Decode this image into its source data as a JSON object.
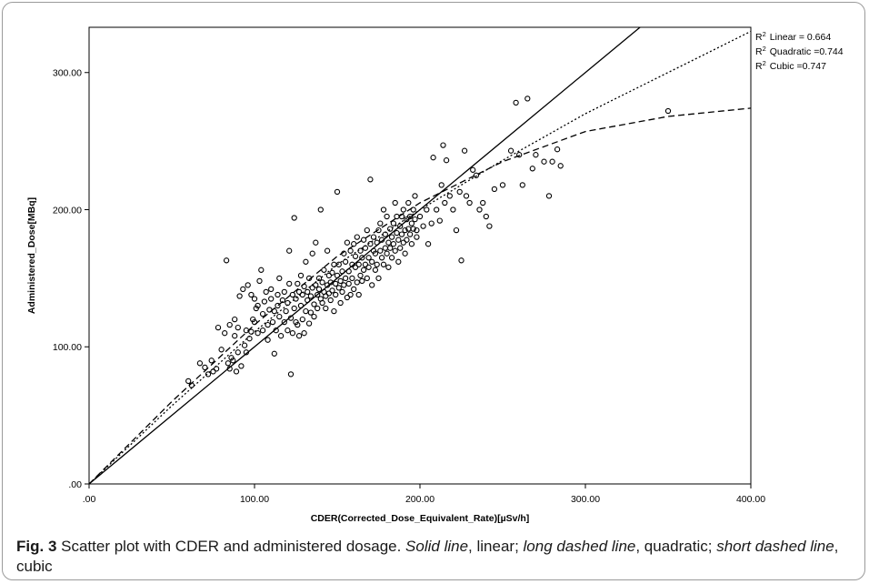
{
  "chart_data": {
    "type": "scatter",
    "xlabel": "CDER(Corrected_Dose_Equivalent_Rate)[µSv/h]",
    "ylabel": "Administered_Dose[MBq]",
    "xlim": [
      0,
      400
    ],
    "ylim": [
      0,
      333
    ],
    "x_ticks": [
      ".00",
      "100.00",
      "200.00",
      "300.00",
      "400.00"
    ],
    "x_tick_values": [
      0,
      100,
      200,
      300,
      400
    ],
    "y_ticks": [
      ".00",
      "100.00",
      "200.00",
      "300.00"
    ],
    "y_tick_values": [
      0,
      100,
      200,
      300
    ],
    "grid": false,
    "legend_entries": [
      {
        "label": "Linear = 0.664",
        "r2": 0.664
      },
      {
        "label": "Quadratic =0.744",
        "r2": 0.744
      },
      {
        "label": "Cubic =0.747",
        "r2": 0.747
      }
    ],
    "fit_lines": [
      {
        "name": "linear",
        "style": "solid",
        "x": [
          0,
          100,
          200,
          300,
          333
        ],
        "y": [
          0,
          100,
          200,
          300,
          333
        ]
      },
      {
        "name": "quadratic",
        "style": "long-dash",
        "x": [
          0,
          50,
          100,
          150,
          200,
          250,
          300,
          350,
          400
        ],
        "y": [
          0,
          60,
          116,
          166,
          205,
          235,
          257,
          268,
          274
        ]
      },
      {
        "name": "cubic",
        "style": "short-dash",
        "x": [
          0,
          50,
          100,
          150,
          200,
          250,
          300,
          350,
          400
        ],
        "y": [
          0,
          57,
          111,
          160,
          200,
          236,
          270,
          300,
          330
        ]
      }
    ],
    "points": [
      [
        60,
        75
      ],
      [
        62,
        72
      ],
      [
        67,
        88
      ],
      [
        70,
        85
      ],
      [
        72,
        80
      ],
      [
        74,
        90
      ],
      [
        75,
        82
      ],
      [
        77,
        84
      ],
      [
        78,
        114
      ],
      [
        80,
        98
      ],
      [
        82,
        110
      ],
      [
        83,
        163
      ],
      [
        84,
        88
      ],
      [
        85,
        116
      ],
      [
        85,
        84
      ],
      [
        86,
        92
      ],
      [
        87,
        90
      ],
      [
        88,
        108
      ],
      [
        88,
        120
      ],
      [
        89,
        82
      ],
      [
        90,
        114
      ],
      [
        90,
        96
      ],
      [
        91,
        137
      ],
      [
        92,
        86
      ],
      [
        93,
        142
      ],
      [
        94,
        101
      ],
      [
        95,
        96
      ],
      [
        95,
        112
      ],
      [
        96,
        145
      ],
      [
        97,
        106
      ],
      [
        98,
        111
      ],
      [
        98,
        138
      ],
      [
        99,
        120
      ],
      [
        100,
        118
      ],
      [
        100,
        135
      ],
      [
        101,
        128
      ],
      [
        102,
        130
      ],
      [
        102,
        110
      ],
      [
        103,
        148
      ],
      [
        104,
        156
      ],
      [
        105,
        124
      ],
      [
        105,
        112
      ],
      [
        106,
        133
      ],
      [
        107,
        140
      ],
      [
        108,
        116
      ],
      [
        108,
        105
      ],
      [
        109,
        127
      ],
      [
        110,
        135
      ],
      [
        110,
        142
      ],
      [
        111,
        118
      ],
      [
        112,
        126
      ],
      [
        112,
        95
      ],
      [
        113,
        112
      ],
      [
        114,
        138
      ],
      [
        114,
        130
      ],
      [
        115,
        150
      ],
      [
        115,
        122
      ],
      [
        116,
        108
      ],
      [
        117,
        134
      ],
      [
        118,
        118
      ],
      [
        118,
        140
      ],
      [
        119,
        126
      ],
      [
        120,
        132
      ],
      [
        120,
        112
      ],
      [
        121,
        170
      ],
      [
        121,
        146
      ],
      [
        122,
        80
      ],
      [
        122,
        121
      ],
      [
        123,
        138
      ],
      [
        123,
        110
      ],
      [
        124,
        194
      ],
      [
        124,
        128
      ],
      [
        125,
        135
      ],
      [
        125,
        118
      ],
      [
        126,
        146
      ],
      [
        126,
        116
      ],
      [
        127,
        140
      ],
      [
        127,
        108
      ],
      [
        128,
        130
      ],
      [
        128,
        152
      ],
      [
        129,
        138
      ],
      [
        129,
        120
      ],
      [
        130,
        110
      ],
      [
        130,
        144
      ],
      [
        131,
        162
      ],
      [
        131,
        126
      ],
      [
        132,
        140
      ],
      [
        132,
        134
      ],
      [
        133,
        117
      ],
      [
        133,
        150
      ],
      [
        134,
        137
      ],
      [
        134,
        125
      ],
      [
        135,
        143
      ],
      [
        135,
        168
      ],
      [
        136,
        131
      ],
      [
        136,
        122
      ],
      [
        137,
        145
      ],
      [
        137,
        176
      ],
      [
        138,
        138
      ],
      [
        138,
        128
      ],
      [
        139,
        150
      ],
      [
        139,
        142
      ],
      [
        140,
        135
      ],
      [
        140,
        200
      ],
      [
        141,
        147
      ],
      [
        141,
        132
      ],
      [
        142,
        140
      ],
      [
        142,
        156
      ],
      [
        143,
        137
      ],
      [
        143,
        128
      ],
      [
        144,
        145
      ],
      [
        144,
        170
      ],
      [
        145,
        139
      ],
      [
        145,
        152
      ],
      [
        146,
        147
      ],
      [
        146,
        134
      ],
      [
        147,
        154
      ],
      [
        147,
        141
      ],
      [
        148,
        160
      ],
      [
        148,
        126
      ],
      [
        149,
        146
      ],
      [
        149,
        138
      ],
      [
        150,
        213
      ],
      [
        150,
        152
      ],
      [
        151,
        143
      ],
      [
        151,
        160
      ],
      [
        152,
        148
      ],
      [
        152,
        132
      ],
      [
        153,
        155
      ],
      [
        153,
        140
      ],
      [
        154,
        168
      ],
      [
        154,
        145
      ],
      [
        155,
        150
      ],
      [
        155,
        162
      ],
      [
        156,
        136
      ],
      [
        156,
        176
      ],
      [
        157,
        155
      ],
      [
        157,
        146
      ],
      [
        158,
        170
      ],
      [
        158,
        138
      ],
      [
        159,
        160
      ],
      [
        159,
        150
      ],
      [
        160,
        175
      ],
      [
        160,
        142
      ],
      [
        161,
        158
      ],
      [
        161,
        166
      ],
      [
        162,
        147
      ],
      [
        162,
        180
      ],
      [
        163,
        160
      ],
      [
        163,
        138
      ],
      [
        164,
        170
      ],
      [
        164,
        152
      ],
      [
        165,
        165
      ],
      [
        165,
        148
      ],
      [
        166,
        178
      ],
      [
        166,
        156
      ],
      [
        167,
        160
      ],
      [
        167,
        172
      ],
      [
        168,
        150
      ],
      [
        168,
        185
      ],
      [
        169,
        165
      ],
      [
        169,
        158
      ],
      [
        170,
        222
      ],
      [
        170,
        175
      ],
      [
        171,
        162
      ],
      [
        171,
        145
      ],
      [
        172,
        170
      ],
      [
        172,
        180
      ],
      [
        173,
        156
      ],
      [
        173,
        168
      ],
      [
        174,
        176
      ],
      [
        174,
        160
      ],
      [
        175,
        185
      ],
      [
        175,
        150
      ],
      [
        176,
        170
      ],
      [
        176,
        190
      ],
      [
        177,
        165
      ],
      [
        177,
        178
      ],
      [
        178,
        160
      ],
      [
        178,
        200
      ],
      [
        179,
        172
      ],
      [
        179,
        182
      ],
      [
        180,
        168
      ],
      [
        180,
        195
      ],
      [
        181,
        176
      ],
      [
        181,
        158
      ],
      [
        182,
        186
      ],
      [
        182,
        172
      ],
      [
        183,
        180
      ],
      [
        183,
        165
      ],
      [
        184,
        190
      ],
      [
        184,
        175
      ],
      [
        185,
        205
      ],
      [
        185,
        170
      ],
      [
        186,
        183
      ],
      [
        186,
        195
      ],
      [
        187,
        178
      ],
      [
        187,
        162
      ],
      [
        188,
        188
      ],
      [
        188,
        172
      ],
      [
        189,
        195
      ],
      [
        189,
        182
      ],
      [
        190,
        176
      ],
      [
        190,
        200
      ],
      [
        191,
        185
      ],
      [
        191,
        168
      ],
      [
        192,
        193
      ],
      [
        192,
        178
      ],
      [
        193,
        186
      ],
      [
        193,
        205
      ],
      [
        194,
        182
      ],
      [
        194,
        195
      ],
      [
        195,
        190
      ],
      [
        195,
        175
      ],
      [
        196,
        200
      ],
      [
        196,
        186
      ],
      [
        197,
        193
      ],
      [
        197,
        210
      ],
      [
        198,
        185
      ],
      [
        198,
        180
      ],
      [
        200,
        195
      ],
      [
        202,
        188
      ],
      [
        204,
        200
      ],
      [
        205,
        175
      ],
      [
        207,
        190
      ],
      [
        208,
        238
      ],
      [
        210,
        200
      ],
      [
        212,
        192
      ],
      [
        213,
        218
      ],
      [
        214,
        247
      ],
      [
        215,
        205
      ],
      [
        216,
        236
      ],
      [
        218,
        210
      ],
      [
        220,
        200
      ],
      [
        222,
        185
      ],
      [
        224,
        213
      ],
      [
        225,
        163
      ],
      [
        227,
        243
      ],
      [
        228,
        210
      ],
      [
        230,
        205
      ],
      [
        232,
        229
      ],
      [
        234,
        225
      ],
      [
        236,
        200
      ],
      [
        238,
        205
      ],
      [
        240,
        195
      ],
      [
        242,
        188
      ],
      [
        245,
        215
      ],
      [
        250,
        218
      ],
      [
        255,
        243
      ],
      [
        258,
        278
      ],
      [
        260,
        240
      ],
      [
        262,
        218
      ],
      [
        265,
        281
      ],
      [
        268,
        230
      ],
      [
        270,
        240
      ],
      [
        275,
        235
      ],
      [
        278,
        210
      ],
      [
        280,
        235
      ],
      [
        283,
        244
      ],
      [
        285,
        232
      ],
      [
        350,
        272
      ]
    ]
  },
  "caption": {
    "fig_label": "Fig. 3",
    "text_1": " Scatter plot with CDER and administered dosage. ",
    "solid": "Solid line",
    "text_2": ", linear; ",
    "long_dashed": "long dashed line",
    "text_3": ", quadratic; ",
    "short_dashed": "short dashed line",
    "text_4": ", cubic"
  }
}
